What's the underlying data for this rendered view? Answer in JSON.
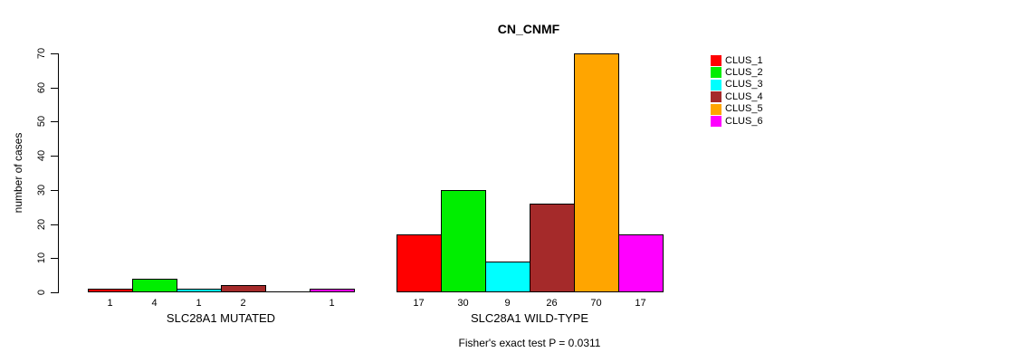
{
  "chart_data": {
    "type": "bar",
    "title": "CN_CNMF",
    "ylabel": "number of cases",
    "xlabel": "",
    "ylim": [
      0,
      70
    ],
    "yticks": [
      0,
      10,
      20,
      30,
      40,
      50,
      60,
      70
    ],
    "grid": false,
    "series_colors": [
      "#FF0000",
      "#00EE00",
      "#00FFFF",
      "#A52A2A",
      "#FFA500",
      "#FF00FF"
    ],
    "groups": [
      {
        "label": "SLC28A1 MUTATED",
        "values": [
          1,
          4,
          1,
          2,
          0,
          1
        ]
      },
      {
        "label": "SLC28A1 WILD-TYPE",
        "values": [
          17,
          30,
          9,
          26,
          70,
          17
        ]
      }
    ],
    "legend": {
      "position": "right",
      "entries": [
        {
          "label": "CLUS_1",
          "color": "#FF0000"
        },
        {
          "label": "CLUS_2",
          "color": "#00EE00"
        },
        {
          "label": "CLUS_3",
          "color": "#00FFFF"
        },
        {
          "label": "CLUS_4",
          "color": "#A52A2A"
        },
        {
          "label": "CLUS_5",
          "color": "#FFA500"
        },
        {
          "label": "CLUS_6",
          "color": "#FF00FF"
        }
      ]
    },
    "footnote": "Fisher's exact test P = 0.0311"
  }
}
